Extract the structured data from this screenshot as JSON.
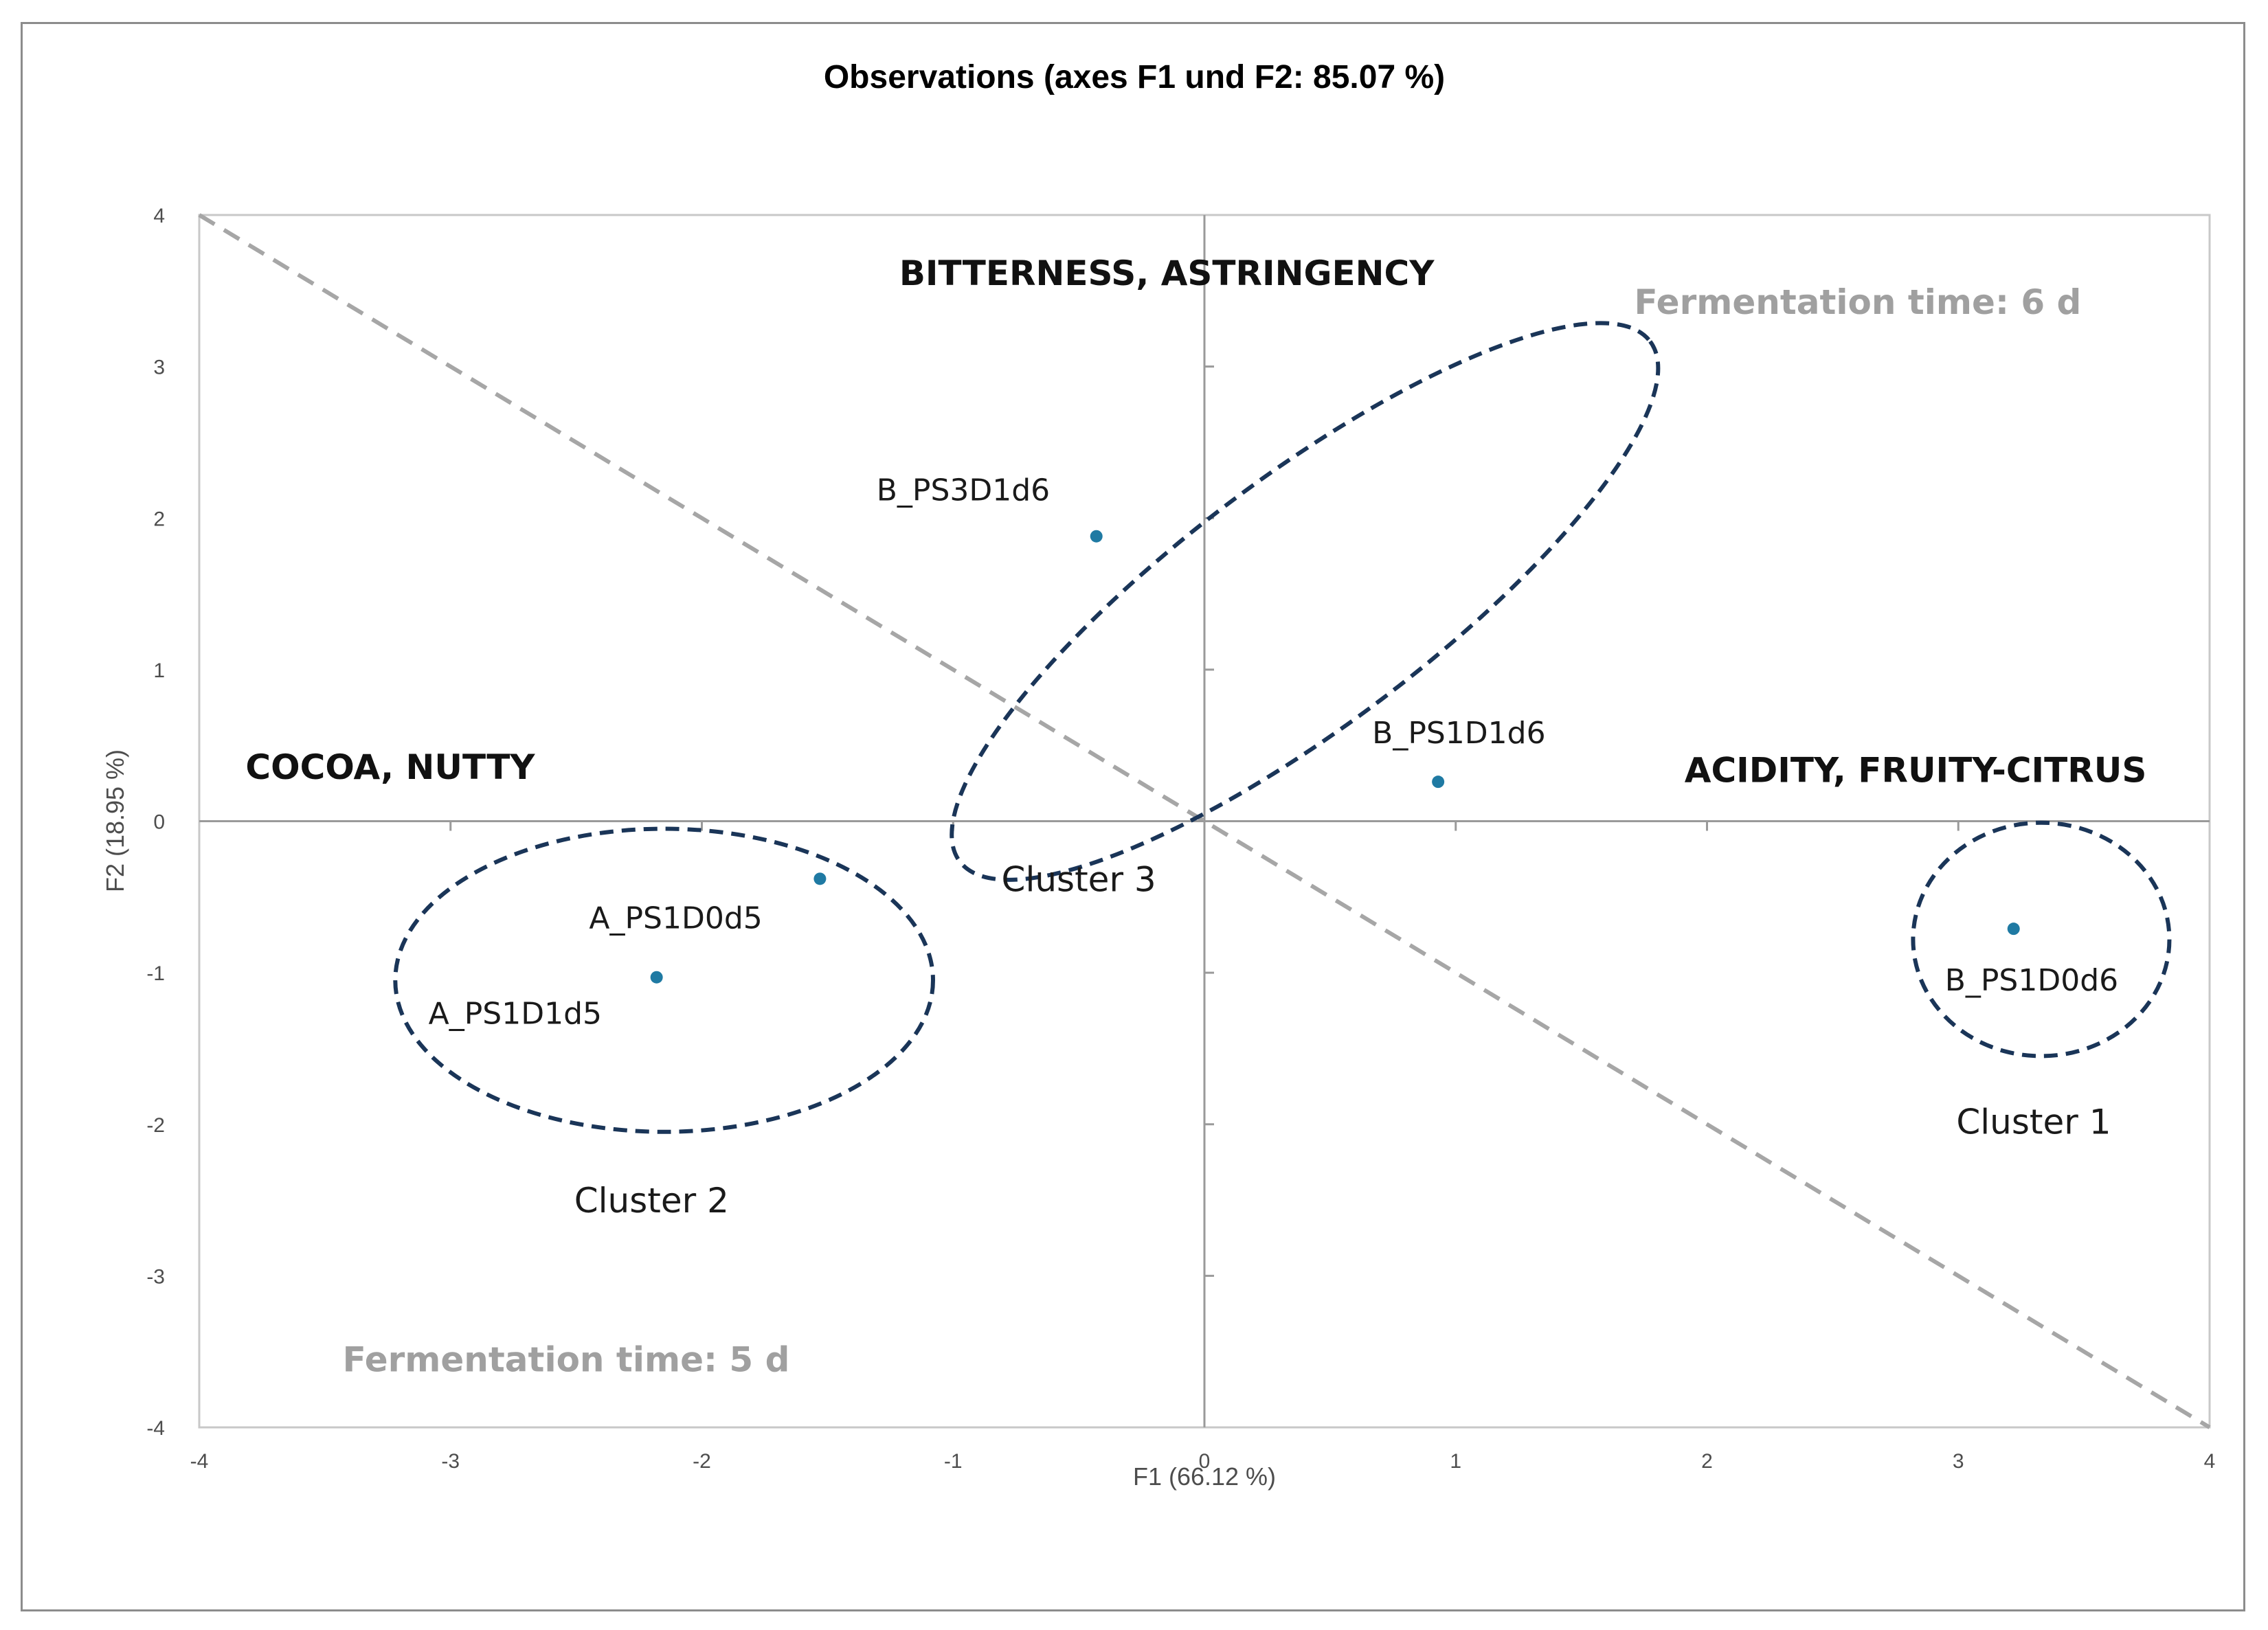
{
  "chart_data": {
    "type": "scatter",
    "title": "Observations (axes F1 und F2: 85.07 %)",
    "xlabel": "F1 (66.12 %)",
    "ylabel": "F2 (18.95 %)",
    "xlim": [
      -4,
      4
    ],
    "ylim": [
      -4,
      4
    ],
    "x_ticks": [
      "-4",
      "-3",
      "-2",
      "-1",
      "0",
      "1",
      "2",
      "3",
      "4"
    ],
    "y_ticks": [
      "4",
      "3",
      "2",
      "1",
      "0",
      "-1",
      "-2",
      "-3",
      "-4"
    ],
    "grid": false,
    "point_color": "#1f7aa3",
    "points": [
      {
        "label": "B_PS3D1d6",
        "x": -0.43,
        "y": 1.88
      },
      {
        "label": "B_PS1D1d6",
        "x": 0.93,
        "y": 0.26
      },
      {
        "label": "A_PS1D0d5",
        "x": -1.53,
        "y": -0.38
      },
      {
        "label": "A_PS1D1d5",
        "x": -2.18,
        "y": -1.03
      },
      {
        "label": "B_PS1D0d6",
        "x": 3.22,
        "y": -0.71
      }
    ],
    "diagonal": {
      "from": [
        -4,
        4
      ],
      "to": [
        4,
        -4
      ],
      "color": "#a6a6a6",
      "style": "dashed"
    },
    "clusters": [
      {
        "label": "Cluster 3",
        "label_x": -0.5,
        "label_y": -0.38,
        "cx": 0.4,
        "cy": 1.45,
        "rx": 1.72,
        "ry": 0.82,
        "angle_deg": -37
      },
      {
        "label": "Cluster 2",
        "label_x": -2.2,
        "label_y": -2.5,
        "cx": -2.15,
        "cy": -1.05,
        "rx": 1.07,
        "ry": 1.0,
        "angle_deg": 0
      },
      {
        "label": "Cluster 1",
        "label_x": 3.3,
        "label_y": -1.98,
        "cx": 3.33,
        "cy": -0.78,
        "rx": 0.51,
        "ry": 0.77,
        "angle_deg": 0
      }
    ],
    "ellipse_color": "#1a3558",
    "annotations": [
      {
        "text": "BITTERNESS, ASTRINGENCY",
        "x": -0.15,
        "y": 3.62,
        "style": "region"
      },
      {
        "text": "COCOA, NUTTY",
        "x": -3.24,
        "y": 0.36,
        "style": "region"
      },
      {
        "text": "ACIDITY, FRUITY-CITRUS",
        "x": 2.83,
        "y": 0.34,
        "style": "region"
      },
      {
        "text": "Fermentation time: 6 d",
        "x": 2.6,
        "y": 3.43,
        "style": "fermentation"
      },
      {
        "text": "Fermentation time: 5 d",
        "x": -2.54,
        "y": -3.55,
        "style": "fermentation"
      }
    ]
  }
}
